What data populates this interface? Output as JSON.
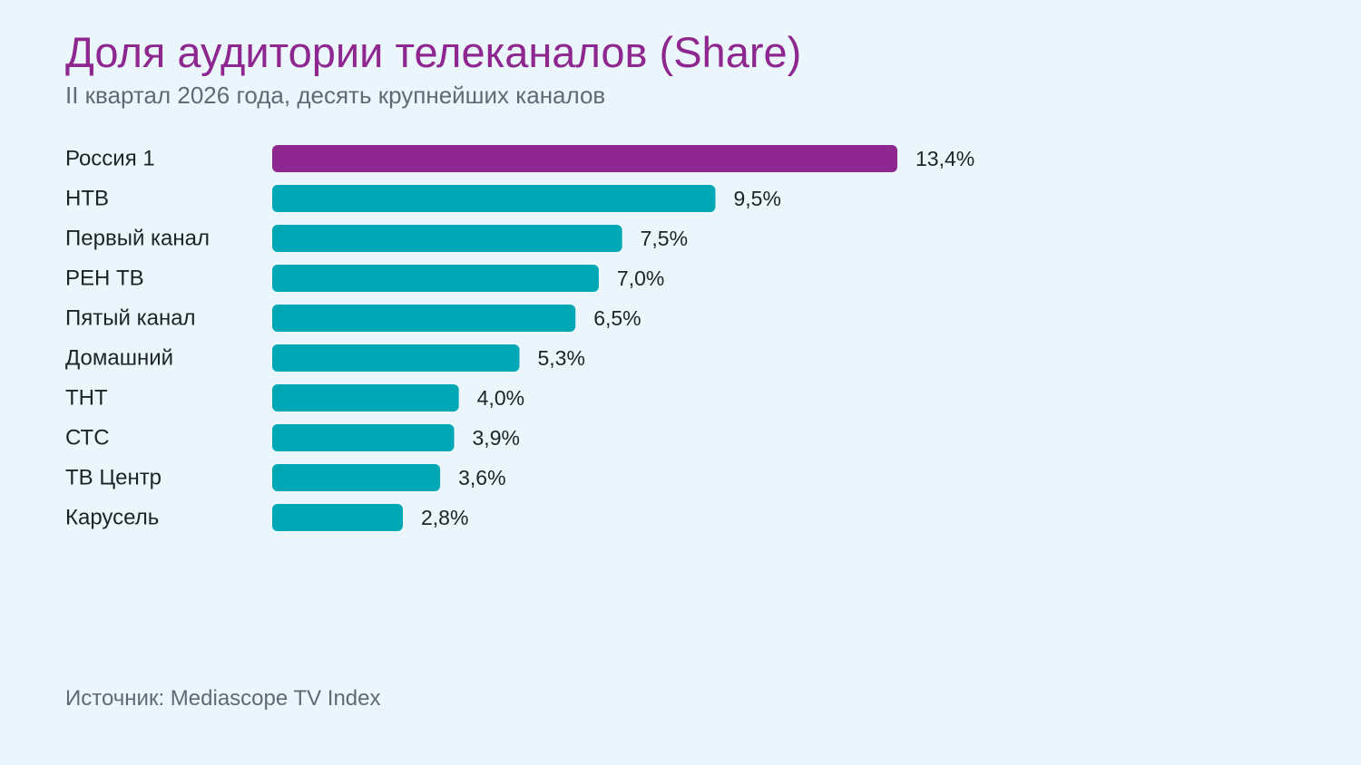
{
  "header": {
    "title": "Доля аудитории телеканалов (Share)",
    "subtitle": "II квартал 2026 года, десять крупнейших каналов"
  },
  "footer": {
    "source": "Источник: Mediascope TV Index"
  },
  "colors": {
    "highlight": "#8e278f",
    "bar": "#00a8b5",
    "label": "#1c2329"
  },
  "chart_data": {
    "type": "bar",
    "orientation": "horizontal",
    "categories": [
      "Россия 1",
      "НТВ",
      "Первый канал",
      "РЕН ТВ",
      "Пятый канал",
      "Домашний",
      "ТНТ",
      "СТС",
      "ТВ Центр",
      "Карусель"
    ],
    "values": [
      13.4,
      9.5,
      7.5,
      7.0,
      6.5,
      5.3,
      4.0,
      3.9,
      3.6,
      2.8
    ],
    "value_labels": [
      "13,4%",
      "9,5%",
      "7,5%",
      "7,0%",
      "6,5%",
      "5,3%",
      "4,0%",
      "3,9%",
      "3,6%",
      "2,8%"
    ],
    "highlighted_category": "Россия 1",
    "grid": false,
    "legend": "none"
  }
}
